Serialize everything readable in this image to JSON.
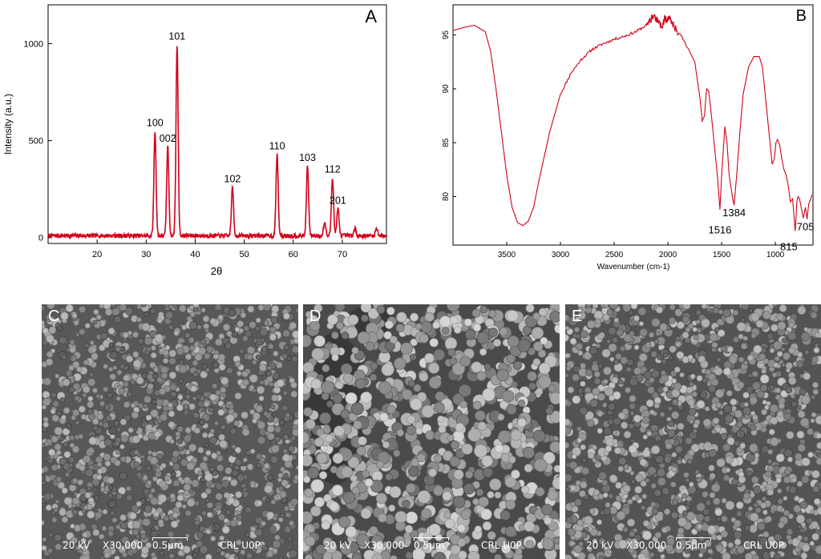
{
  "panels": {
    "A": {
      "letter": "A",
      "chart_data": {
        "type": "line",
        "xlabel": "2θ",
        "ylabel": "Intensity (a.u.)",
        "xlim": [
          10,
          79
        ],
        "ylim": [
          -30,
          1200
        ],
        "x_ticks": [
          20,
          30,
          40,
          50,
          60,
          70
        ],
        "y_ticks": [
          0,
          500,
          1000
        ],
        "color": "#d0021b",
        "baseline": 10,
        "peaks": [
          {
            "x": 31.8,
            "y": 540,
            "label": "100"
          },
          {
            "x": 34.4,
            "y": 460,
            "label": "002"
          },
          {
            "x": 36.3,
            "y": 985,
            "label": "101"
          },
          {
            "x": 47.6,
            "y": 250,
            "label": "102"
          },
          {
            "x": 56.7,
            "y": 420,
            "label": "110"
          },
          {
            "x": 62.9,
            "y": 360,
            "label": "103"
          },
          {
            "x": 66.4,
            "y": 70,
            "label": ""
          },
          {
            "x": 68.0,
            "y": 300,
            "label": "112"
          },
          {
            "x": 69.1,
            "y": 140,
            "label": "201"
          },
          {
            "x": 72.6,
            "y": 35,
            "label": ""
          },
          {
            "x": 77.0,
            "y": 40,
            "label": ""
          }
        ]
      }
    },
    "B": {
      "letter": "B",
      "chart_data": {
        "type": "line",
        "xlabel": "Wavenumber (cm-1)",
        "ylabel": "",
        "xlim": [
          4000,
          650
        ],
        "ylim": [
          75.5,
          97.8
        ],
        "x_ticks": [
          3500,
          3000,
          2500,
          2000,
          1500,
          1000
        ],
        "y_ticks": [
          80,
          85,
          90,
          95
        ],
        "color": "#d0021b",
        "x": [
          4000,
          3900,
          3800,
          3700,
          3650,
          3600,
          3550,
          3500,
          3450,
          3400,
          3350,
          3300,
          3250,
          3200,
          3100,
          3000,
          2900,
          2800,
          2700,
          2600,
          2500,
          2400,
          2300,
          2200,
          2160,
          2130,
          2100,
          2050,
          2030,
          2010,
          1990,
          1960,
          1920,
          1850,
          1750,
          1700,
          1680,
          1660,
          1640,
          1620,
          1600,
          1580,
          1560,
          1540,
          1516,
          1500,
          1470,
          1450,
          1430,
          1400,
          1384,
          1360,
          1330,
          1300,
          1250,
          1200,
          1150,
          1120,
          1100,
          1080,
          1050,
          1030,
          1010,
          995,
          980,
          960,
          940,
          920,
          900,
          880,
          860,
          840,
          815,
          800,
          790,
          775,
          760,
          740,
          720,
          705,
          690,
          670,
          660
        ],
        "y": [
          95.4,
          95.7,
          95.9,
          95.3,
          93.5,
          90.0,
          86.0,
          82.0,
          79.0,
          77.6,
          77.3,
          77.7,
          79.0,
          81.5,
          86.0,
          89.5,
          91.5,
          92.8,
          93.7,
          94.2,
          94.6,
          94.9,
          95.3,
          95.9,
          96.5,
          96.8,
          96.3,
          95.9,
          96.6,
          96.2,
          96.7,
          96.0,
          95.5,
          94.5,
          92.5,
          89.0,
          87.0,
          87.5,
          90.0,
          89.8,
          88.0,
          86.0,
          84.0,
          82.0,
          78.8,
          82.0,
          86.5,
          85.0,
          82.0,
          80.0,
          79.2,
          82.0,
          86.0,
          89.5,
          92.0,
          93.0,
          93.0,
          92.0,
          90.0,
          88.0,
          85.0,
          83.0,
          83.5,
          85.0,
          85.3,
          84.8,
          83.5,
          82.5,
          82.0,
          81.0,
          79.5,
          79.8,
          76.8,
          79.5,
          80.0,
          79.8,
          79.0,
          78.0,
          79.0,
          77.9,
          79.3,
          79.8,
          80.2
        ],
        "annotations": [
          {
            "x": 1384,
            "y": 79.2,
            "label": "1384"
          },
          {
            "x": 1516,
            "y": 78.8,
            "label": "1516"
          },
          {
            "x": 815,
            "y": 76.8,
            "label": "815"
          },
          {
            "x": 705,
            "y": 77.9,
            "label": "705"
          }
        ]
      }
    },
    "C": {
      "letter": "C",
      "kv": "20 kV",
      "magnification": "X30,000",
      "scale": "0.5µm",
      "lab": "CRL U0P"
    },
    "D": {
      "letter": "D",
      "kv": "20 kV",
      "magnification": "X30,000",
      "scale": "0.5µm",
      "lab": "CRL U0P"
    },
    "E": {
      "letter": "E",
      "kv": "20 kV",
      "magnification": "X30,000",
      "scale": "0.5µm",
      "lab": "CRL U0P"
    }
  }
}
